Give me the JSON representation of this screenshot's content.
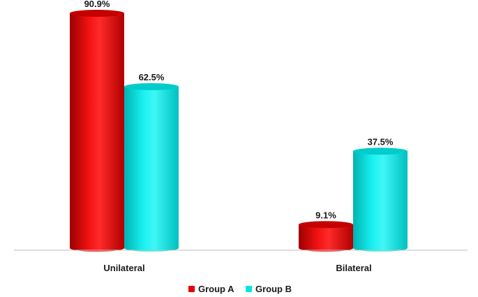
{
  "chart_data": {
    "type": "bar",
    "categories": [
      "Unilateral",
      "Bilateral"
    ],
    "series": [
      {
        "name": "Group A",
        "values": [
          90.9,
          9.1
        ],
        "labels": [
          "90.9%",
          "9.1%"
        ],
        "color": "#e60000"
      },
      {
        "name": "Group B",
        "values": [
          62.5,
          37.5
        ],
        "labels": [
          "62.5%",
          "37.5%"
        ],
        "color": "#00e5e5"
      }
    ],
    "ylim": [
      0,
      100
    ],
    "grid": false,
    "legend_position": "bottom-center",
    "bar_style": "cylinder"
  }
}
